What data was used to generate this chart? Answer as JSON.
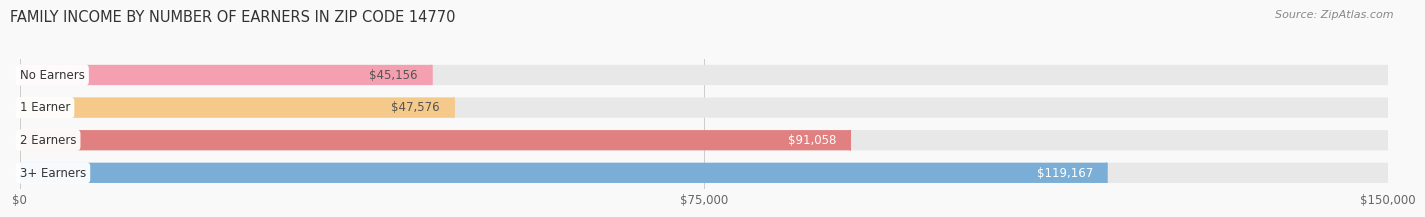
{
  "title": "FAMILY INCOME BY NUMBER OF EARNERS IN ZIP CODE 14770",
  "source": "Source: ZipAtlas.com",
  "categories": [
    "No Earners",
    "1 Earner",
    "2 Earners",
    "3+ Earners"
  ],
  "values": [
    45156,
    47576,
    91058,
    119167
  ],
  "labels": [
    "$45,156",
    "$47,576",
    "$91,058",
    "$119,167"
  ],
  "bar_colors": [
    "#f4a0b0",
    "#f5c98a",
    "#e08080",
    "#7aaed6"
  ],
  "bar_bg_color": "#e8e8e8",
  "label_colors": [
    "#555555",
    "#555555",
    "#ffffff",
    "#ffffff"
  ],
  "xlim": [
    0,
    150000
  ],
  "xticks": [
    0,
    75000,
    150000
  ],
  "xticklabels": [
    "$0",
    "$75,000",
    "$150,000"
  ],
  "bar_height": 0.62,
  "background_color": "#f9f9f9",
  "title_fontsize": 10.5,
  "source_fontsize": 8,
  "label_fontsize": 8.5,
  "category_fontsize": 8.5
}
